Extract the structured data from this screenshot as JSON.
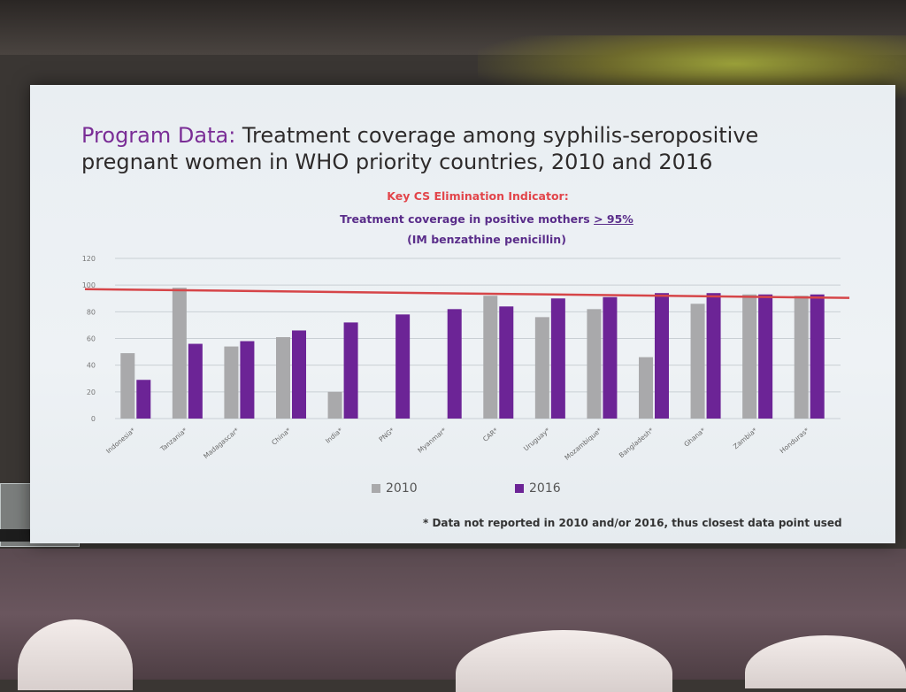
{
  "slide": {
    "title_accent": "Program Data:",
    "title_line1": " Treatment coverage among syphilis-seropositive",
    "title_line2": "pregnant women in WHO priority countries, 2010 and 2016",
    "indicator_label": "Key CS Elimination Indicator:",
    "indicator_text": "Treatment coverage in positive mothers ",
    "indicator_threshold": "> 95%",
    "indicator_text2": "(IM benzathine penicillin)",
    "footnote": "* Data not reported in 2010 and/or 2016, thus closest data point used"
  },
  "colors": {
    "series_2010": "#a9a9ab",
    "series_2016": "#6c2496",
    "target_line": "#d64548",
    "title_accent": "#7a2d96"
  },
  "chart_data": {
    "type": "bar",
    "categories": [
      "Indonesia*",
      "Tanzania*",
      "Madagascar*",
      "China*",
      "India*",
      "PNG*",
      "Myanmar*",
      "CAR*",
      "Uruguay*",
      "Mozambique*",
      "Bangladesh*",
      "Ghana*",
      "Zambia*",
      "Honduras*"
    ],
    "series": [
      {
        "name": "2010",
        "values": [
          49,
          98,
          54,
          61,
          20,
          null,
          null,
          92,
          76,
          82,
          46,
          86,
          93,
          92
        ]
      },
      {
        "name": "2016",
        "values": [
          29,
          56,
          58,
          66,
          72,
          78,
          82,
          84,
          90,
          91,
          94,
          94,
          93,
          93
        ]
      }
    ],
    "reference_line": {
      "value": 95
    },
    "yticks": [
      0,
      20,
      40,
      60,
      80,
      100,
      120
    ],
    "ylim": [
      0,
      120
    ],
    "grid": true,
    "legend_position": "bottom"
  }
}
